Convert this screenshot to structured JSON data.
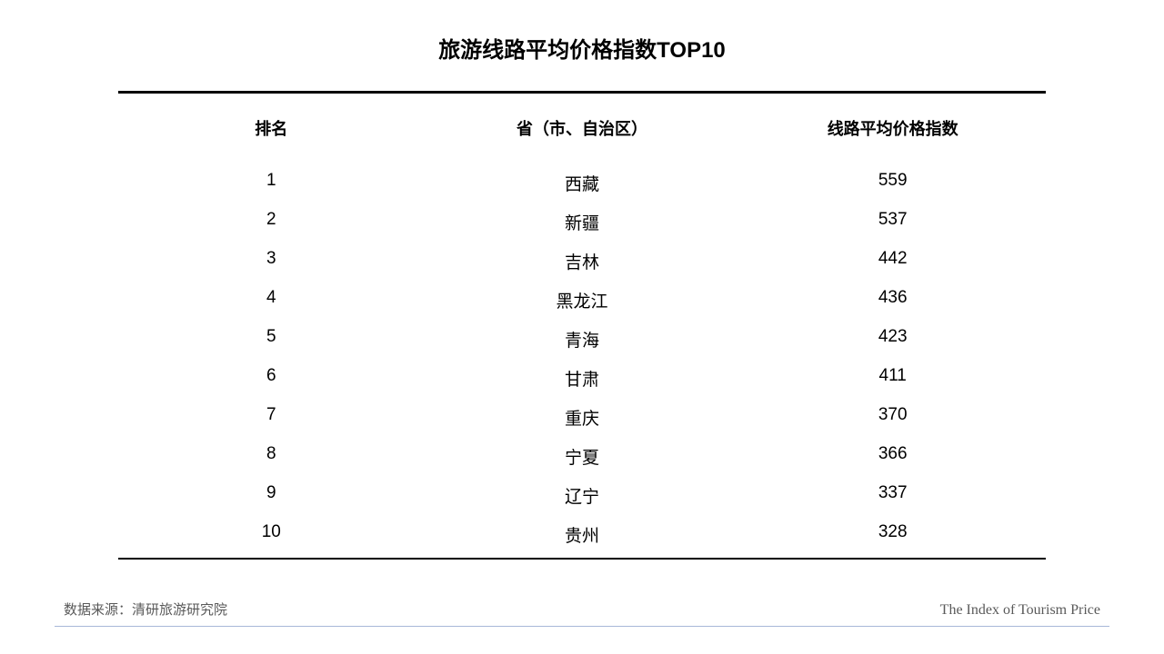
{
  "title": "旅游线路平均价格指数TOP10",
  "table": {
    "columns": [
      "排名",
      "省（市、自治区）",
      "线路平均价格指数"
    ],
    "rows": [
      {
        "rank": "1",
        "province": "西藏",
        "index": "559"
      },
      {
        "rank": "2",
        "province": "新疆",
        "index": "537"
      },
      {
        "rank": "3",
        "province": "吉林",
        "index": "442"
      },
      {
        "rank": "4",
        "province": "黑龙江",
        "index": "436"
      },
      {
        "rank": "5",
        "province": "青海",
        "index": "423"
      },
      {
        "rank": "6",
        "province": "甘肃",
        "index": "411"
      },
      {
        "rank": "7",
        "province": "重庆",
        "index": "370"
      },
      {
        "rank": "8",
        "province": "宁夏",
        "index": "366"
      },
      {
        "rank": "9",
        "province": "辽宁",
        "index": "337"
      },
      {
        "rank": "10",
        "province": "贵州",
        "index": "328"
      }
    ]
  },
  "footer": {
    "source": "数据来源：清研旅游研究院",
    "index_label": "The Index of Tourism Price"
  },
  "styling": {
    "background_color": "#ffffff",
    "text_color": "#000000",
    "footer_text_color": "#595959",
    "footer_border_color": "#a8b8d8",
    "title_fontsize": 24,
    "header_fontsize": 18,
    "data_fontsize": 19,
    "footer_fontsize": 15,
    "table_top_border_width": 3,
    "table_bottom_border_width": 2
  }
}
